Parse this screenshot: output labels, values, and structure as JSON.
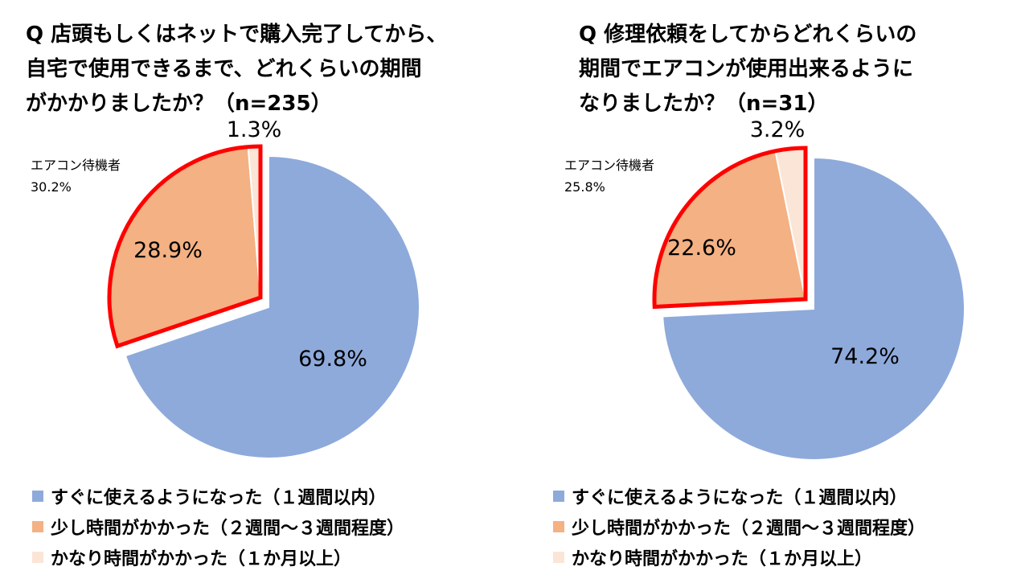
{
  "colors": {
    "series": [
      "#8EAADB",
      "#F4B183",
      "#FBE5D6"
    ],
    "highlight": "#FF0000"
  },
  "charts": [
    {
      "title": [
        "Q 店頭もしくはネットで購入完了してから、",
        "自宅で使用できるまで、どれくらいの期間",
        "がかかりましたか？（n=235）"
      ],
      "callout": {
        "label": "エアコン待機者",
        "value": "30.2%"
      },
      "legend": [
        "すぐに使えるようになった（１週間以内）",
        "少し時間がかかった（２週間～３週間程度）",
        "かなり時間がかかった（１か月以上）"
      ]
    },
    {
      "title": [
        "Q 修理依頼をしてからどれくらいの",
        "期間でエアコンが使用出来るように",
        "なりましたか？（n=31）"
      ],
      "callout": {
        "label": "エアコン待機者",
        "value": "25.8%"
      },
      "legend": [
        "すぐに使えるようになった（１週間以内）",
        "少し時間がかかった（２週間～３週間程度）",
        "かなり時間がかかった（１か月以上）"
      ]
    }
  ],
  "chart_data": [
    {
      "type": "pie",
      "title": "Q 店頭もしくはネットで購入完了してから、自宅で使用できるまで、どれくらいの期間がかかりましたか？（n=235）",
      "categories": [
        "すぐに使えるようになった（１週間以内）",
        "少し時間がかかった（２週間～３週間程度）",
        "かなり時間がかかった（１か月以上）"
      ],
      "values": [
        69.8,
        28.9,
        1.3
      ],
      "labels": [
        "69.8%",
        "28.9%",
        "1.3%"
      ],
      "highlighted_group": {
        "label": "エアコン待機者",
        "value": 30.2
      },
      "legend_position": "bottom"
    },
    {
      "type": "pie",
      "title": "Q 修理依頼をしてからどれくらいの期間でエアコンが使用出来るようになりましたか？（n=31）",
      "categories": [
        "すぐに使えるようになった（１週間以内）",
        "少し時間がかかった（２週間～３週間程度）",
        "かなり時間がかかった（１か月以上）"
      ],
      "values": [
        74.2,
        22.6,
        3.2
      ],
      "labels": [
        "74.2%",
        "22.6%",
        "3.2%"
      ],
      "highlighted_group": {
        "label": "エアコン待機者",
        "value": 25.8
      },
      "legend_position": "bottom"
    }
  ]
}
